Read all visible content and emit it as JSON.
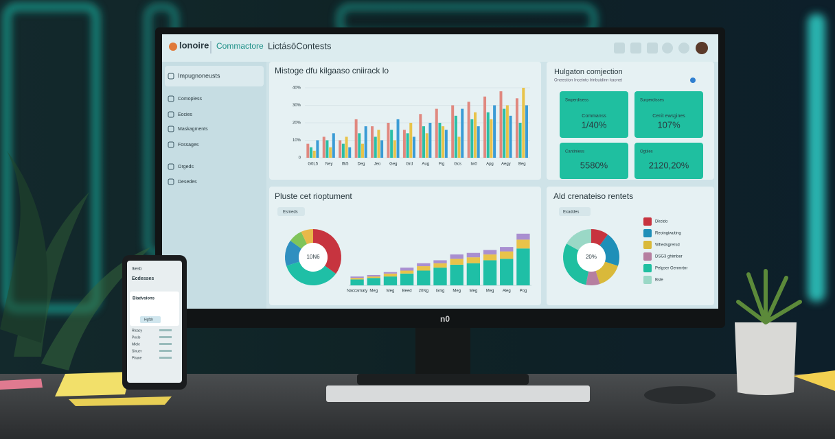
{
  "header": {
    "logo": "lonoire",
    "section": "Commactore",
    "title": "LictásōContests",
    "brand": "n0"
  },
  "sidebar": {
    "items": [
      "Impugnoneusts",
      "Comopless",
      "Eocies",
      "Maskagments",
      "Fossages",
      "Orgeds",
      "Desedes"
    ]
  },
  "kpi": {
    "title": "Hulgaton comjection",
    "subtitle": "Oneestion Inceinto Irinbuidinn kaonet",
    "cards": [
      {
        "label": "Swperdisess",
        "sublabel": "Commanss",
        "value": "1/40%"
      },
      {
        "label": "Surperdisses",
        "sublabel": "Cenit ewsgines",
        "value": "107%"
      },
      {
        "label": "Cantiniess",
        "value": "5580%"
      },
      {
        "label": "Ogtiies",
        "value": "2120,20%"
      }
    ]
  },
  "phone": {
    "title": "Ikesb",
    "heading": "Ecdesses",
    "line": "Biadvsions",
    "button": "Hgfzh",
    "rows": [
      "Rlcacy",
      "Pecle",
      "Mlele",
      "Sinuer",
      "Plrane"
    ]
  },
  "chart_data": [
    {
      "type": "bar",
      "title": "Mistoge dfu kilgaaso cniirack lo",
      "categories": [
        "G0L5",
        "Ney",
        "Ifk5",
        "Deg",
        "Jeo",
        "Geg",
        "Grd",
        "Aug",
        "Fig",
        "Gcs",
        "Iw0",
        "Apg",
        "Aegy",
        "Beg"
      ],
      "series": [
        {
          "color": "#e0887f",
          "values": [
            8,
            12,
            10,
            22,
            18,
            20,
            16,
            25,
            28,
            30,
            32,
            35,
            38,
            34
          ]
        },
        {
          "color": "#2bbfa6",
          "values": [
            6,
            10,
            8,
            14,
            12,
            16,
            14,
            18,
            20,
            24,
            22,
            26,
            28,
            20
          ]
        },
        {
          "color": "#e8c34a",
          "values": [
            4,
            6,
            12,
            8,
            16,
            10,
            20,
            14,
            18,
            12,
            26,
            22,
            30,
            40
          ]
        },
        {
          "color": "#3a9bd5",
          "values": [
            10,
            14,
            6,
            18,
            10,
            22,
            12,
            20,
            16,
            28,
            18,
            30,
            24,
            30
          ]
        }
      ],
      "ylim": [
        0,
        40
      ],
      "yticks": [
        0,
        {
          "value": 10,
          "label": "10%"
        },
        {
          "value": 20,
          "label": "20%"
        },
        {
          "value": 30,
          "label": "30%"
        },
        {
          "value": 40,
          "label": "40%"
        }
      ],
      "grid": true
    },
    {
      "type": "pie",
      "title": "Pluste cet rioptument",
      "filter": "Esmeds",
      "center_label": "10N6",
      "values": [
        35,
        35,
        15,
        8,
        7
      ],
      "colors": [
        "#c7343f",
        "#1fbfa6",
        "#2f8fc0",
        "#7fc45a",
        "#e8b84a"
      ]
    },
    {
      "type": "stacked-bar",
      "categories": [
        "Naccamaty",
        "Meg",
        "Meg",
        "Beed",
        "20Ng",
        "Gnig",
        "Meg",
        "Meg",
        "Meg",
        "Aleg",
        "Pog"
      ],
      "series": [
        {
          "color": "#1fbfa6",
          "values": [
            4,
            5,
            6,
            8,
            10,
            12,
            14,
            15,
            17,
            18,
            25
          ]
        },
        {
          "color": "#e8c34a",
          "values": [
            1,
            1,
            2,
            2,
            3,
            3,
            4,
            4,
            4,
            5,
            6
          ]
        },
        {
          "color": "#a98fd0",
          "values": [
            1,
            1,
            1,
            2,
            2,
            2,
            3,
            3,
            3,
            3,
            4
          ]
        }
      ],
      "ylim": [
        0,
        40
      ]
    },
    {
      "type": "pie",
      "title": "Ald crenateiso rentets",
      "filter": "Exaddes",
      "center_label": "20%",
      "categories": [
        "Dkcido",
        "Reoingiwuting",
        "Whedsgrersd",
        "DSG3 ghimber",
        "Pelgser Genmrtnr",
        "Bsle"
      ],
      "values": [
        10,
        20,
        15,
        8,
        30,
        17
      ],
      "colors": [
        "#c7343f",
        "#1f8fb8",
        "#d9b93a",
        "#b67fa0",
        "#1fbfa0",
        "#9ad8c6"
      ]
    }
  ]
}
